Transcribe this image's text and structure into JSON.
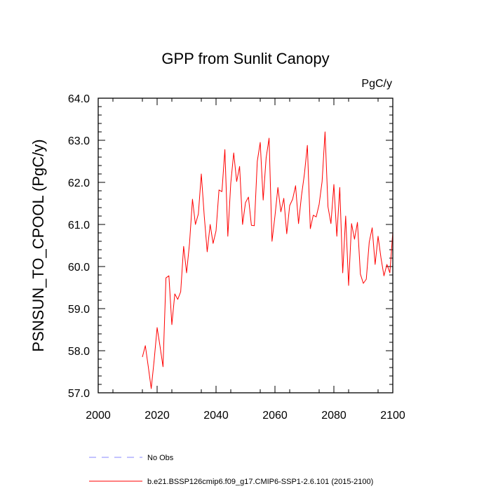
{
  "chart_data": {
    "type": "line",
    "title": "GPP from Sunlit Canopy",
    "units": "PgC/y",
    "xlabel": "",
    "ylabel": "PSNSUN_TO_CPOOL  (PgC/y)",
    "xlim": [
      2000,
      2100
    ],
    "ylim": [
      57.0,
      64.0
    ],
    "xticks": [
      2000,
      2020,
      2040,
      2060,
      2080,
      2100
    ],
    "yticks": [
      "57.0",
      "58.0",
      "59.0",
      "60.0",
      "61.0",
      "62.0",
      "63.0",
      "64.0"
    ],
    "legend": [
      {
        "label": "No Obs",
        "color": "#8a8aff",
        "style": "dashed"
      },
      {
        "label": "b.e21.BSSP126cmip6.f09_g17.CMIP6-SSP1-2.6.101 (2015-2100)",
        "color": "#ff0000",
        "style": "solid"
      }
    ],
    "series": [
      {
        "name": "b.e21.BSSP126cmip6.f09_g17.CMIP6-SSP1-2.6.101 (2015-2100)",
        "color": "#ff0000",
        "x": [
          2015,
          2016,
          2017,
          2018,
          2019,
          2020,
          2021,
          2022,
          2023,
          2024,
          2025,
          2026,
          2027,
          2028,
          2029,
          2030,
          2031,
          2032,
          2033,
          2034,
          2035,
          2036,
          2037,
          2038,
          2039,
          2040,
          2041,
          2042,
          2043,
          2044,
          2045,
          2046,
          2047,
          2048,
          2049,
          2050,
          2051,
          2052,
          2053,
          2054,
          2055,
          2056,
          2057,
          2058,
          2059,
          2060,
          2061,
          2062,
          2063,
          2064,
          2065,
          2066,
          2067,
          2068,
          2069,
          2070,
          2071,
          2072,
          2073,
          2074,
          2075,
          2076,
          2077,
          2078,
          2079,
          2080,
          2081,
          2082,
          2083,
          2084,
          2085,
          2086,
          2087,
          2088,
          2089,
          2090,
          2091,
          2092,
          2093,
          2094,
          2095,
          2096,
          2097,
          2098,
          2099,
          2100
        ],
        "values": [
          57.85,
          58.12,
          57.62,
          57.1,
          57.78,
          58.55,
          58.1,
          57.62,
          59.73,
          59.78,
          58.62,
          59.35,
          59.22,
          59.4,
          60.48,
          59.85,
          60.55,
          61.6,
          61.0,
          61.25,
          62.2,
          61.2,
          60.35,
          61.0,
          60.55,
          60.85,
          61.82,
          61.78,
          62.78,
          60.72,
          61.98,
          62.7,
          62.02,
          62.38,
          61.0,
          61.52,
          61.65,
          60.98,
          60.97,
          62.5,
          62.95,
          61.58,
          62.58,
          63.05,
          60.6,
          61.2,
          61.88,
          61.3,
          61.62,
          60.78,
          61.45,
          61.6,
          61.92,
          61.02,
          61.68,
          62.2,
          62.88,
          60.9,
          61.22,
          61.18,
          61.48,
          62.02,
          63.2,
          61.42,
          61.02,
          61.95,
          60.72,
          61.88,
          59.85,
          61.2,
          59.55,
          61.02,
          60.65,
          61.05,
          59.82,
          59.6,
          59.7,
          60.58,
          60.92,
          60.05,
          60.72,
          60.2,
          59.78,
          60.05,
          59.85,
          60.82
        ]
      }
    ]
  }
}
